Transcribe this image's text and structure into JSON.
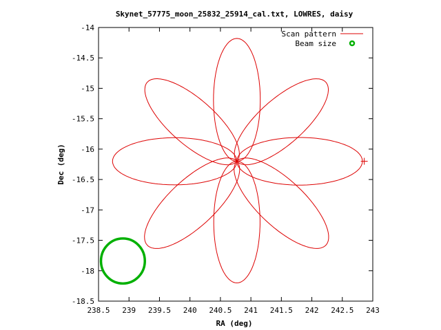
{
  "chart_data": {
    "type": "line",
    "title": "Skynet_57775_moon_25832_25914_cal.txt, LOWRES, daisy",
    "xlabel": "RA (deg)",
    "ylabel": "Dec (deg)",
    "xlim": [
      238.5,
      243
    ],
    "ylim": [
      -18.5,
      -14
    ],
    "xticks": [
      238.5,
      239,
      239.5,
      240,
      240.5,
      241,
      241.5,
      242,
      242.5,
      243
    ],
    "yticks": [
      -18.5,
      -18,
      -17.5,
      -17,
      -16.5,
      -16,
      -15.5,
      -15,
      -14.5,
      -14
    ],
    "xtick_labels": [
      "238.5",
      "239",
      "239.5",
      "240",
      "240.5",
      "241",
      "241.5",
      "242",
      "242.5",
      "243"
    ],
    "ytick_labels": [
      "-18.5",
      "-18",
      "-17.5",
      "-17",
      "-16.5",
      "-16",
      "-15.5",
      "-15",
      "-14.5",
      "-14"
    ],
    "legend_position": "top-right",
    "grid": false,
    "series": [
      {
        "name": "Scan pattern",
        "kind": "daisy",
        "color": "#dd0000",
        "center": [
          240.77,
          -16.2
        ],
        "petals": 8,
        "petal_tips": [
          [
            242.83,
            -16.2
          ],
          [
            242.23,
            -14.9
          ],
          [
            240.77,
            -14.18
          ],
          [
            239.3,
            -14.9
          ],
          [
            238.73,
            -16.2
          ],
          [
            239.3,
            -17.58
          ],
          [
            240.77,
            -18.2
          ],
          [
            242.23,
            -17.58
          ]
        ],
        "start_marker": [
          242.86,
          -16.2
        ]
      },
      {
        "name": "Beam size",
        "kind": "circle",
        "color": "#00b000",
        "center": [
          238.9,
          -17.84
        ],
        "radius_ra": 0.36,
        "radius_dec": 0.37
      }
    ]
  }
}
